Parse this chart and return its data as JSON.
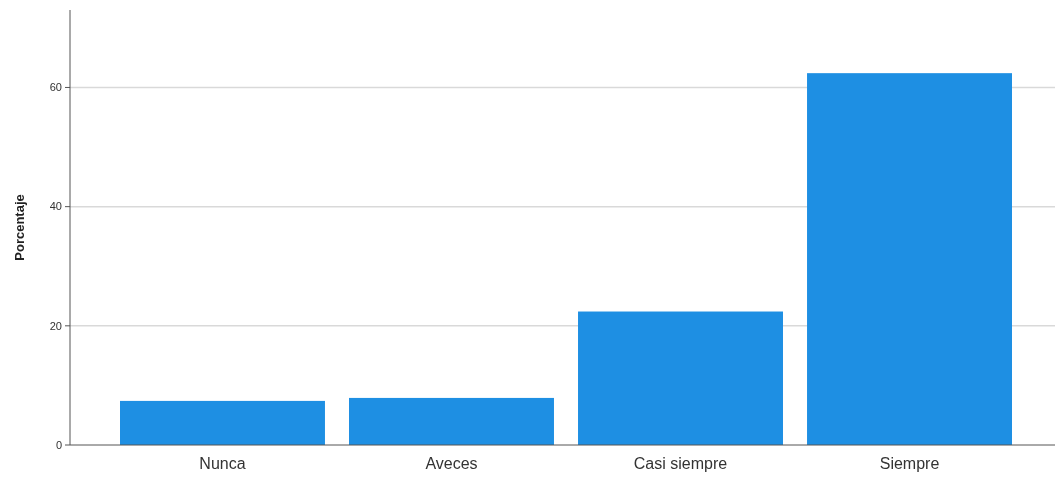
{
  "chart_data": {
    "type": "bar",
    "ylabel": "Porcentaje",
    "categories": [
      "Nunca",
      "Aveces",
      "Casi siempre",
      "Siempre"
    ],
    "values": [
      7.4,
      7.9,
      22.4,
      62.4
    ],
    "color": "#1e8fe3",
    "ylim": [
      0,
      73
    ],
    "yticks": [
      0,
      20,
      40,
      60
    ],
    "grid": "y"
  }
}
